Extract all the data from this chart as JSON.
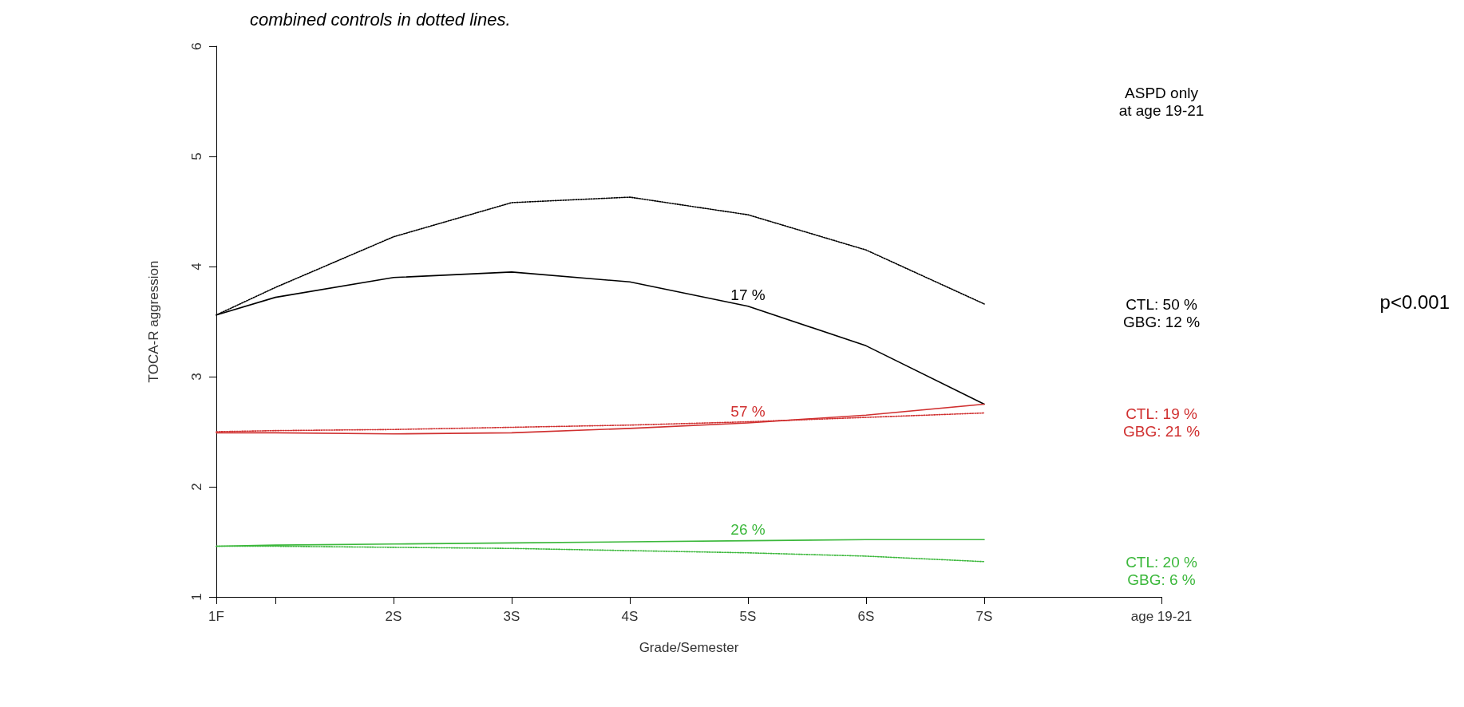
{
  "chart_data": {
    "type": "line",
    "title": "combined controls in dotted lines.",
    "xlabel": "Grade/Semester",
    "ylabel": "TOCA-R aggression",
    "categories": [
      "1F",
      null,
      null,
      "2S",
      null,
      "3S",
      null,
      "4S",
      null,
      "5S",
      null,
      "6S",
      null,
      "7S",
      null,
      null,
      "age 19-21"
    ],
    "ylim": [
      1,
      6
    ],
    "yticks": [
      1,
      2,
      3,
      4,
      5,
      6
    ],
    "series": [
      {
        "color": "#000000",
        "line_style": "solid",
        "values": [
          3.56,
          3.72,
          null,
          3.9,
          null,
          3.95,
          null,
          3.86,
          null,
          3.64,
          null,
          3.28,
          null,
          2.75,
          null,
          null,
          null
        ]
      },
      {
        "color": "#000000",
        "line_style": "dotted",
        "values": [
          3.56,
          3.81,
          null,
          4.27,
          null,
          4.58,
          null,
          4.63,
          null,
          4.47,
          null,
          4.15,
          null,
          3.66,
          null,
          null,
          null
        ]
      },
      {
        "color": "#d03030",
        "line_style": "solid",
        "values": [
          2.49,
          2.49,
          null,
          2.48,
          null,
          2.49,
          null,
          2.53,
          null,
          2.58,
          null,
          2.65,
          null,
          2.75,
          null,
          null,
          null
        ]
      },
      {
        "color": "#d03030",
        "line_style": "dotted",
        "values": [
          2.5,
          2.51,
          null,
          2.52,
          null,
          2.54,
          null,
          2.56,
          null,
          2.59,
          null,
          2.63,
          null,
          2.67,
          null,
          null,
          null
        ]
      },
      {
        "color": "#3cb83c",
        "line_style": "solid",
        "values": [
          1.46,
          1.47,
          null,
          1.48,
          null,
          1.49,
          null,
          1.5,
          null,
          1.51,
          null,
          1.52,
          null,
          1.52,
          null,
          null,
          null
        ]
      },
      {
        "color": "#3cb83c",
        "line_style": "dotted",
        "values": [
          1.46,
          1.46,
          null,
          1.45,
          null,
          1.44,
          null,
          1.42,
          null,
          1.4,
          null,
          1.37,
          null,
          1.32,
          null,
          null,
          null
        ]
      }
    ],
    "annotations": [
      "ASPD only\nat age 19-21",
      "p<0.001",
      "17 %",
      "CTL: 50 %\nGBG: 12 %",
      "57 %",
      "CTL: 19 %\nGBG: 21 %",
      "26 %",
      "CTL: 20 %\nGBG: 6 %"
    ],
    "grid": false,
    "marker": "none"
  }
}
